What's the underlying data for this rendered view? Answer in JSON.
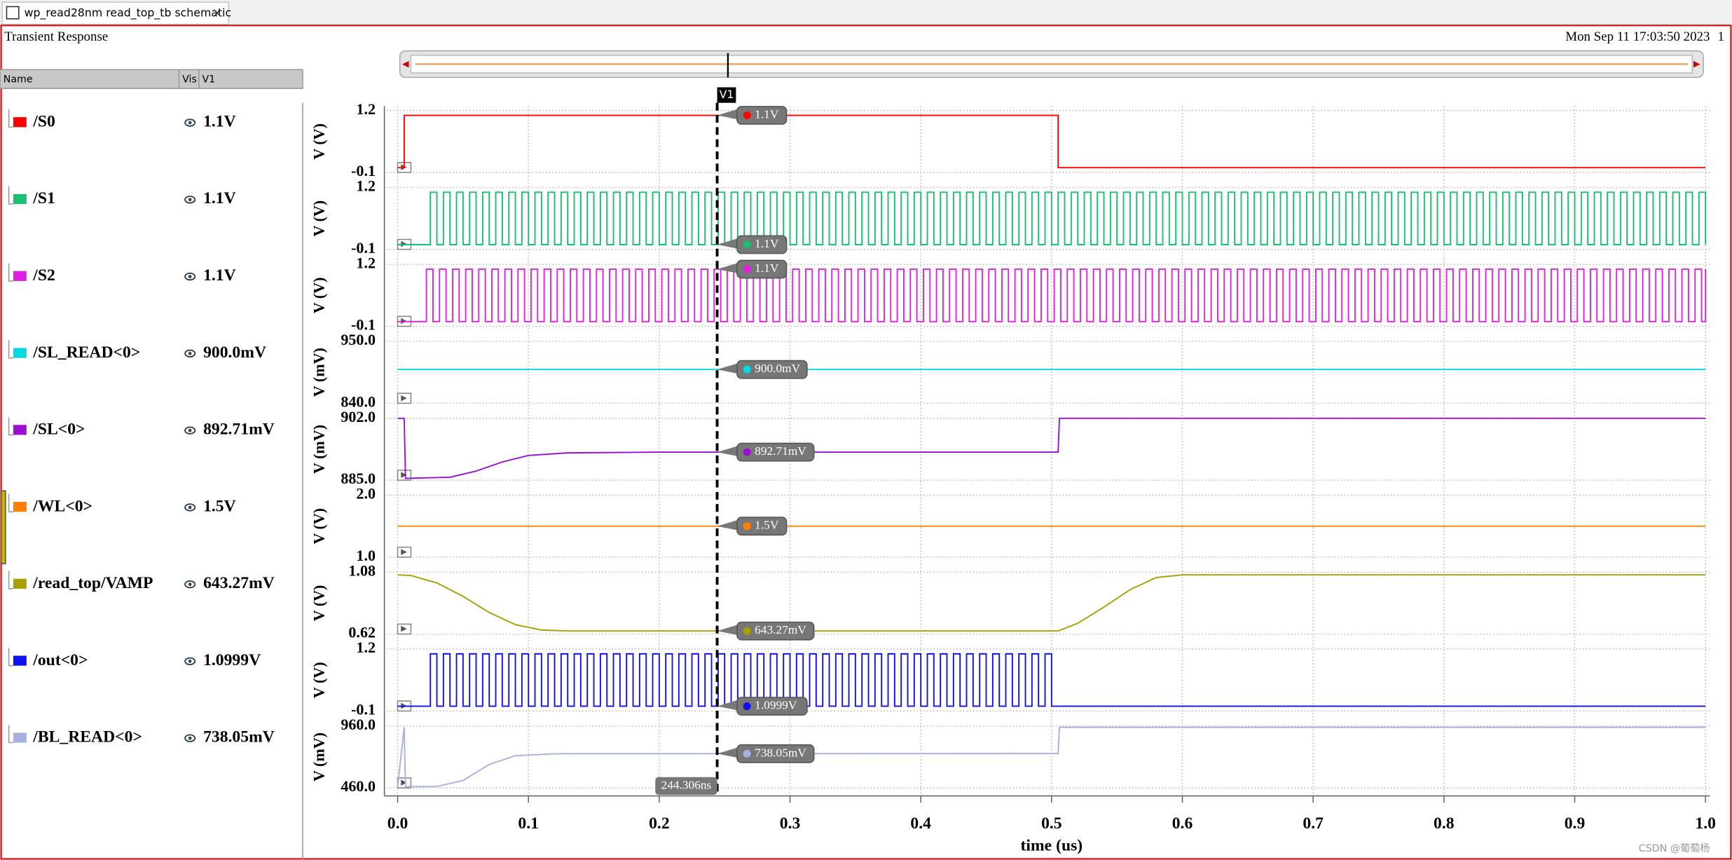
{
  "tab_title": "wp_read28nm read_top_tb schematic",
  "window_title": "Transient Response",
  "date": "Mon Sep 11 17:03:50 2023",
  "page_number": "1",
  "columns": [
    "Name",
    "Vis",
    "V1"
  ],
  "watermark": "CSDN @葡萄杨",
  "cursor": {
    "name": "V1",
    "x": 0.244306,
    "label": "244.306ns"
  },
  "x_axis": {
    "label": "time (us)",
    "xlim": [
      0,
      1
    ],
    "xticks": [
      {
        "value": 0,
        "label": "0.0"
      },
      0.1,
      0.2,
      0.3,
      0.4,
      0.5,
      0.6,
      0.7,
      0.8,
      0.9,
      {
        "value": 1,
        "label": "1.0"
      }
    ],
    "grid": true
  },
  "chart_data": [
    {
      "type": "step",
      "name": "/S0",
      "color": "#ff0000",
      "cursor_value": "1.1V",
      "ylabel": "V (V)",
      "ylim": [
        -0.1,
        1.2
      ],
      "yticks": [
        -0.1,
        1.2
      ],
      "x": [
        0,
        0.005,
        0.505,
        1
      ],
      "values": [
        0,
        1.1,
        0,
        0
      ]
    },
    {
      "type": "step",
      "name": "/S1",
      "color": "#18c070",
      "cursor_value": "1.1V",
      "ylabel": "V (V)",
      "ylim": [
        -0.1,
        1.2
      ],
      "yticks": [
        -0.1,
        1.2
      ],
      "x": [
        0,
        0.025,
        0.03,
        0.035,
        0.04,
        0.045,
        0.05,
        0.055,
        0.06,
        0.065,
        0.07,
        0.075,
        0.08,
        0.085,
        0.09,
        0.095,
        0.1,
        0.105,
        0.11,
        0.115,
        0.12,
        0.125,
        0.13,
        0.135,
        0.14,
        0.145,
        0.15,
        0.155,
        0.16,
        0.165,
        0.17,
        0.175,
        0.18,
        0.185,
        0.19,
        0.195,
        0.2,
        0.205,
        0.21,
        0.215,
        0.22,
        0.225,
        0.23,
        0.235,
        0.24,
        0.245,
        0.25,
        0.255,
        0.26,
        0.265,
        0.27,
        0.275,
        0.28,
        0.285,
        0.29,
        0.295,
        0.3,
        0.305,
        0.31,
        0.315,
        0.32,
        0.325,
        0.33,
        0.335,
        0.34,
        0.345,
        0.35,
        0.355,
        0.36,
        0.365,
        0.37,
        0.375,
        0.38,
        0.385,
        0.39,
        0.395,
        0.4,
        0.405,
        0.41,
        0.415,
        0.42,
        0.425,
        0.43,
        0.435,
        0.44,
        0.445,
        0.45,
        0.455,
        0.46,
        0.465,
        0.47,
        0.475,
        0.48,
        0.485,
        0.49,
        0.495,
        0.5,
        0.505,
        0.51,
        0.515,
        0.52,
        0.525,
        0.53,
        0.535,
        0.54,
        0.545,
        0.55,
        0.555,
        0.56,
        0.565,
        0.57,
        0.575,
        0.58,
        0.585,
        0.59,
        0.595,
        0.6,
        0.605,
        0.61,
        0.615,
        0.62,
        0.625,
        0.63,
        0.635,
        0.64,
        0.645,
        0.65,
        0.655,
        0.66,
        0.665,
        0.67,
        0.675,
        0.68,
        0.685,
        0.69,
        0.695,
        0.7,
        0.705,
        0.71,
        0.715,
        0.72,
        0.725,
        0.73,
        0.735,
        0.74,
        0.745,
        0.75,
        0.755,
        0.76,
        0.765,
        0.77,
        0.775,
        0.78,
        0.785,
        0.79,
        0.795,
        0.8,
        0.805,
        0.81,
        0.815,
        0.82,
        0.825,
        0.83,
        0.835,
        0.84,
        0.845,
        0.85,
        0.855,
        0.86,
        0.865,
        0.87,
        0.875,
        0.88,
        0.885,
        0.89,
        0.895,
        0.9,
        0.905,
        0.91,
        0.915,
        0.92,
        0.925,
        0.93,
        0.935,
        0.94,
        0.945,
        0.95,
        0.955,
        0.96,
        0.965,
        0.97,
        0.975,
        0.98,
        0.985,
        0.99,
        0.995,
        1
      ],
      "values": [
        0,
        1.1,
        0,
        1.1,
        0,
        1.1,
        0,
        1.1,
        0,
        1.1,
        0,
        1.1,
        0,
        1.1,
        0,
        1.1,
        0,
        1.1,
        0,
        1.1,
        0,
        1.1,
        0,
        1.1,
        0,
        1.1,
        0,
        1.1,
        0,
        1.1,
        0,
        1.1,
        0,
        1.1,
        0,
        1.1,
        0,
        1.1,
        0,
        1.1,
        0,
        1.1,
        0,
        1.1,
        0,
        1.1,
        0,
        1.1,
        0,
        1.1,
        0,
        1.1,
        0,
        1.1,
        0,
        1.1,
        0,
        1.1,
        0,
        1.1,
        0,
        1.1,
        0,
        1.1,
        0,
        1.1,
        0,
        1.1,
        0,
        1.1,
        0,
        1.1,
        0,
        1.1,
        0,
        1.1,
        0,
        1.1,
        0,
        1.1,
        0,
        1.1,
        0,
        1.1,
        0,
        1.1,
        0,
        1.1,
        0,
        1.1,
        0,
        1.1,
        0,
        1.1,
        0,
        1.1,
        0,
        1.1,
        0,
        1.1,
        0,
        1.1,
        0,
        1.1,
        0,
        1.1,
        0,
        1.1,
        0,
        1.1,
        0,
        1.1,
        0,
        1.1,
        0,
        1.1,
        0,
        1.1,
        0,
        1.1,
        0,
        1.1,
        0,
        1.1,
        0,
        1.1,
        0,
        1.1,
        0,
        1.1,
        0,
        1.1,
        0,
        1.1,
        0,
        1.1,
        0,
        1.1,
        0,
        1.1,
        0,
        1.1,
        0,
        1.1,
        0,
        1.1,
        0,
        1.1,
        0,
        1.1,
        0,
        1.1,
        0,
        1.1,
        0,
        1.1,
        0,
        1.1,
        0,
        1.1,
        0,
        1.1,
        0,
        1.1,
        0,
        1.1,
        0,
        1.1,
        0,
        1.1,
        0,
        1.1,
        0,
        1.1,
        0,
        1.1,
        0,
        1.1,
        0,
        1.1,
        0,
        1.1,
        0,
        1.1,
        0,
        1.1,
        0,
        1.1,
        0,
        1.1,
        0,
        1.1,
        0,
        1.1,
        0,
        1.1,
        0
      ]
    },
    {
      "type": "step",
      "name": "/S2",
      "color": "#e020e0",
      "cursor_value": "1.1V",
      "ylabel": "V (V)",
      "ylim": [
        -0.1,
        1.2
      ],
      "yticks": [
        -0.1,
        1.2
      ],
      "x": [
        0,
        0.022,
        0.027,
        0.032,
        0.037,
        0.042,
        0.047,
        0.052,
        0.057,
        0.062,
        0.067,
        0.072,
        0.077,
        0.082,
        0.087,
        0.092,
        0.097,
        0.102,
        0.107,
        0.112,
        0.117,
        0.122,
        0.127,
        0.132,
        0.137,
        0.142,
        0.147,
        0.152,
        0.157,
        0.162,
        0.167,
        0.172,
        0.177,
        0.182,
        0.187,
        0.192,
        0.197,
        0.202,
        0.207,
        0.212,
        0.217,
        0.222,
        0.227,
        0.232,
        0.237,
        0.242,
        0.247,
        0.252,
        0.257,
        0.262,
        0.267,
        0.272,
        0.277,
        0.282,
        0.287,
        0.292,
        0.297,
        0.302,
        0.307,
        0.312,
        0.317,
        0.322,
        0.327,
        0.332,
        0.337,
        0.342,
        0.347,
        0.352,
        0.357,
        0.362,
        0.367,
        0.372,
        0.377,
        0.382,
        0.387,
        0.392,
        0.397,
        0.402,
        0.407,
        0.412,
        0.417,
        0.422,
        0.427,
        0.432,
        0.437,
        0.442,
        0.447,
        0.452,
        0.457,
        0.462,
        0.467,
        0.472,
        0.477,
        0.482,
        0.487,
        0.492,
        0.497,
        0.502,
        0.507,
        0.512,
        0.517,
        0.522,
        0.527,
        0.532,
        0.537,
        0.542,
        0.547,
        0.552,
        0.557,
        0.562,
        0.567,
        0.572,
        0.577,
        0.582,
        0.587,
        0.592,
        0.597,
        0.602,
        0.607,
        0.612,
        0.617,
        0.622,
        0.627,
        0.632,
        0.637,
        0.642,
        0.647,
        0.652,
        0.657,
        0.662,
        0.667,
        0.672,
        0.677,
        0.682,
        0.687,
        0.692,
        0.697,
        0.702,
        0.707,
        0.712,
        0.717,
        0.722,
        0.727,
        0.732,
        0.737,
        0.742,
        0.747,
        0.752,
        0.757,
        0.762,
        0.767,
        0.772,
        0.777,
        0.782,
        0.787,
        0.792,
        0.797,
        0.802,
        0.807,
        0.812,
        0.817,
        0.822,
        0.827,
        0.832,
        0.837,
        0.842,
        0.847,
        0.852,
        0.857,
        0.862,
        0.867,
        0.872,
        0.877,
        0.882,
        0.887,
        0.892,
        0.897,
        0.902,
        0.907,
        0.912,
        0.917,
        0.922,
        0.927,
        0.932,
        0.937,
        0.942,
        0.947,
        0.952,
        0.957,
        0.962,
        0.967,
        0.972,
        0.977,
        0.982,
        0.987,
        0.992,
        0.997,
        1
      ],
      "values": [
        0,
        1.1,
        0,
        1.1,
        0,
        1.1,
        0,
        1.1,
        0,
        1.1,
        0,
        1.1,
        0,
        1.1,
        0,
        1.1,
        0,
        1.1,
        0,
        1.1,
        0,
        1.1,
        0,
        1.1,
        0,
        1.1,
        0,
        1.1,
        0,
        1.1,
        0,
        1.1,
        0,
        1.1,
        0,
        1.1,
        0,
        1.1,
        0,
        1.1,
        0,
        1.1,
        0,
        1.1,
        0,
        1.1,
        0,
        1.1,
        0,
        1.1,
        0,
        1.1,
        0,
        1.1,
        0,
        1.1,
        0,
        1.1,
        0,
        1.1,
        0,
        1.1,
        0,
        1.1,
        0,
        1.1,
        0,
        1.1,
        0,
        1.1,
        0,
        1.1,
        0,
        1.1,
        0,
        1.1,
        0,
        1.1,
        0,
        1.1,
        0,
        1.1,
        0,
        1.1,
        0,
        1.1,
        0,
        1.1,
        0,
        1.1,
        0,
        1.1,
        0,
        1.1,
        0,
        1.1,
        0,
        1.1,
        0,
        1.1,
        0,
        1.1,
        0,
        1.1,
        0,
        1.1,
        0,
        1.1,
        0,
        1.1,
        0,
        1.1,
        0,
        1.1,
        0,
        1.1,
        0,
        1.1,
        0,
        1.1,
        0,
        1.1,
        0,
        1.1,
        0,
        1.1,
        0,
        1.1,
        0,
        1.1,
        0,
        1.1,
        0,
        1.1,
        0,
        1.1,
        0,
        1.1,
        0,
        1.1,
        0,
        1.1,
        0,
        1.1,
        0,
        1.1,
        0,
        1.1,
        0,
        1.1,
        0,
        1.1,
        0,
        1.1,
        0,
        1.1,
        0,
        1.1,
        0,
        1.1,
        0,
        1.1,
        0,
        1.1,
        0,
        1.1,
        0,
        1.1,
        0,
        1.1,
        0,
        1.1,
        0,
        1.1,
        0,
        1.1,
        0,
        1.1,
        0,
        1.1,
        0,
        1.1,
        0,
        1.1,
        0,
        1.1,
        0,
        1.1,
        0,
        1.1,
        0,
        1.1,
        0,
        1.1,
        0,
        1.1,
        0,
        1.1
      ]
    },
    {
      "type": "line",
      "name": "/SL_READ<0>",
      "color": "#00d8e0",
      "cursor_value": "900.0mV",
      "ylabel": "V (mV)",
      "ylim": [
        840,
        950
      ],
      "yticks": [
        {
          "value": 840,
          "label": "840.0"
        },
        {
          "value": 950,
          "label": "950.0"
        }
      ],
      "x": [
        0,
        1
      ],
      "values": [
        900,
        900
      ]
    },
    {
      "type": "line",
      "name": "/SL<0>",
      "color": "#9b10d0",
      "cursor_value": "892.71mV",
      "ylabel": "V (mV)",
      "ylim": [
        885,
        902
      ],
      "yticks": [
        {
          "value": 885,
          "label": "885.0"
        },
        {
          "value": 902,
          "label": "902.0"
        }
      ],
      "x": [
        0,
        0.005,
        0.006,
        0.04,
        0.06,
        0.08,
        0.1,
        0.13,
        0.2,
        0.505,
        0.506,
        1
      ],
      "values": [
        902,
        902,
        885.5,
        885.8,
        887.5,
        890,
        891.8,
        892.5,
        892.7,
        892.71,
        902,
        902
      ]
    },
    {
      "type": "line",
      "name": "/WL<0>",
      "color": "#ff8000",
      "cursor_value": "1.5V",
      "ylabel": "V (V)",
      "ylim": [
        1,
        2
      ],
      "yticks": [
        {
          "value": 1,
          "label": "1.0"
        },
        {
          "value": 2,
          "label": "2.0"
        }
      ],
      "x": [
        0,
        1
      ],
      "values": [
        1.5,
        1.5
      ]
    },
    {
      "type": "line",
      "name": "/read_top/VAMP",
      "color": "#a8a000",
      "cursor_value": "643.27mV",
      "ylabel": "V (V)",
      "ylim": [
        0.62,
        1.08
      ],
      "yticks": [
        0.62,
        1.08
      ],
      "x": [
        0,
        0.01,
        0.03,
        0.05,
        0.07,
        0.09,
        0.11,
        0.13,
        0.505,
        0.52,
        0.54,
        0.56,
        0.58,
        0.6,
        1
      ],
      "values": [
        1.06,
        1.055,
        1.0,
        0.9,
        0.78,
        0.69,
        0.65,
        0.643,
        0.643,
        0.7,
        0.82,
        0.95,
        1.04,
        1.06,
        1.06
      ]
    },
    {
      "type": "step",
      "name": "/out<0>",
      "color": "#1010f0",
      "cursor_value": "1.0999V",
      "ylabel": "V (V)",
      "ylim": [
        -0.1,
        1.2
      ],
      "yticks": [
        -0.1,
        1.2
      ],
      "x": [
        0,
        0.025,
        0.03,
        0.035,
        0.04,
        0.045,
        0.05,
        0.055,
        0.06,
        0.065,
        0.07,
        0.075,
        0.08,
        0.085,
        0.09,
        0.095,
        0.1,
        0.105,
        0.11,
        0.115,
        0.12,
        0.125,
        0.13,
        0.135,
        0.14,
        0.145,
        0.15,
        0.155,
        0.16,
        0.165,
        0.17,
        0.175,
        0.18,
        0.185,
        0.19,
        0.195,
        0.2,
        0.205,
        0.21,
        0.215,
        0.22,
        0.225,
        0.23,
        0.235,
        0.24,
        0.245,
        0.25,
        0.255,
        0.26,
        0.265,
        0.27,
        0.275,
        0.28,
        0.285,
        0.29,
        0.295,
        0.3,
        0.305,
        0.31,
        0.315,
        0.32,
        0.325,
        0.33,
        0.335,
        0.34,
        0.345,
        0.35,
        0.355,
        0.36,
        0.365,
        0.37,
        0.375,
        0.38,
        0.385,
        0.39,
        0.395,
        0.4,
        0.405,
        0.41,
        0.415,
        0.42,
        0.425,
        0.43,
        0.435,
        0.44,
        0.445,
        0.45,
        0.455,
        0.46,
        0.465,
        0.47,
        0.475,
        0.48,
        0.485,
        0.49,
        0.495,
        0.5,
        1
      ],
      "values": [
        0,
        1.1,
        0,
        1.1,
        0,
        1.1,
        0,
        1.1,
        0,
        1.1,
        0,
        1.1,
        0,
        1.1,
        0,
        1.1,
        0,
        1.1,
        0,
        1.1,
        0,
        1.1,
        0,
        1.1,
        0,
        1.1,
        0,
        1.1,
        0,
        1.1,
        0,
        1.1,
        0,
        1.1,
        0,
        1.1,
        0,
        1.1,
        0,
        1.1,
        0,
        1.1,
        0,
        1.1,
        0,
        1.1,
        0,
        1.1,
        0,
        1.1,
        0,
        1.1,
        0,
        1.1,
        0,
        1.1,
        0,
        1.1,
        0,
        1.1,
        0,
        1.1,
        0,
        1.1,
        0,
        1.1,
        0,
        1.1,
        0,
        1.1,
        0,
        1.1,
        0,
        1.1,
        0,
        1.1,
        0,
        1.1,
        0,
        1.1,
        0,
        1.1,
        0,
        1.1,
        0,
        1.1,
        0,
        1.1,
        0,
        1.1,
        0,
        1.1,
        0,
        1.1,
        0,
        1.1,
        0,
        0
      ]
    },
    {
      "type": "line",
      "name": "/BL_READ<0>",
      "color": "#a8b0e0",
      "cursor_value": "738.05mV",
      "ylabel": "V (mV)",
      "ylim": [
        460,
        960
      ],
      "yticks": [
        {
          "value": 460,
          "label": "460.0"
        },
        {
          "value": 960,
          "label": "960.0"
        }
      ],
      "x": [
        0,
        0.005,
        0.006,
        0.03,
        0.05,
        0.07,
        0.09,
        0.12,
        0.505,
        0.506,
        1
      ],
      "values": [
        470,
        950,
        470,
        472,
        520,
        650,
        720,
        736,
        738.05,
        950,
        950
      ]
    }
  ]
}
